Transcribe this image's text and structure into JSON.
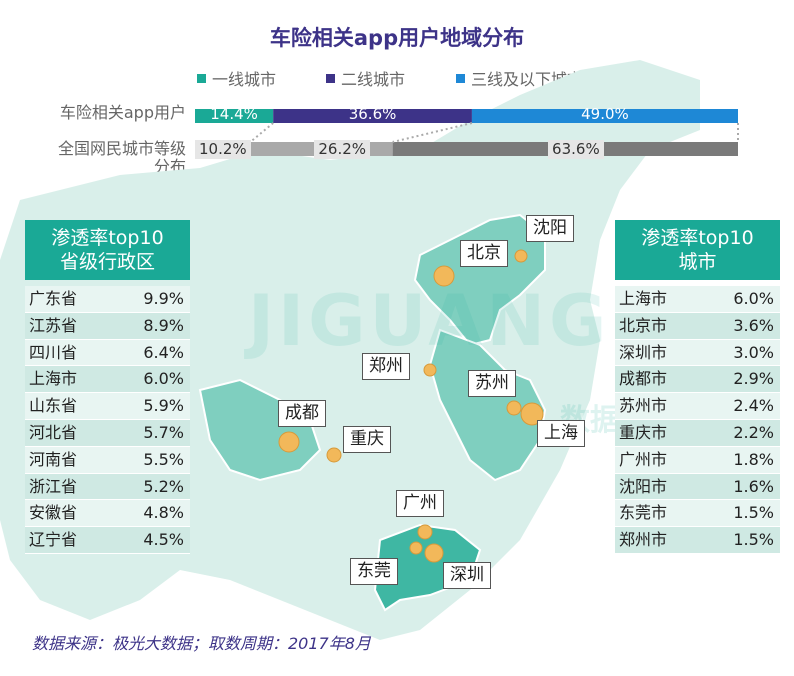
{
  "title": "车险相关app用户地域分布",
  "legend": [
    {
      "label": "一线城市",
      "color": "#1aa996"
    },
    {
      "label": "二线城市",
      "color": "#3d3388"
    },
    {
      "label": "三线及以下城市",
      "color": "#1e88d6"
    }
  ],
  "chart_data": {
    "type": "bar",
    "stacked": true,
    "orientation": "horizontal",
    "categories": [
      "车险相关app用户",
      "全国网民城市等级分布"
    ],
    "series": [
      {
        "name": "一线城市",
        "values": [
          14.4,
          10.2
        ]
      },
      {
        "name": "二线城市",
        "values": [
          36.6,
          26.2
        ]
      },
      {
        "name": "三线及以下城市",
        "values": [
          49.0,
          63.6
        ]
      }
    ],
    "value_labels": [
      [
        "14.4%",
        "36.6%",
        "49.0%"
      ],
      [
        "10.2%",
        "26.2%",
        "63.6%"
      ]
    ],
    "unit": "%"
  },
  "row_labels": {
    "app_users": "车险相关app用户",
    "netizen_1": "全国网民城市等级",
    "netizen_2": "分布"
  },
  "colors": {
    "tier1": "#1aa996",
    "tier2": "#3d3388",
    "tier3": "#1e88d6",
    "gray_light": "#cfcfcf",
    "gray_mid": "#a9a9a9",
    "gray_dark": "#7a7a7a",
    "map_dark": "#7fcfbf",
    "map_light": "#d9efea",
    "marker": "#f2b85a"
  },
  "province_panel": {
    "title_line1": "渗透率top10",
    "title_line2": "省级行政区",
    "rows": [
      {
        "name": "广东省",
        "value": "9.9%"
      },
      {
        "name": "江苏省",
        "value": "8.9%"
      },
      {
        "name": "四川省",
        "value": "6.4%"
      },
      {
        "name": "上海市",
        "value": "6.0%"
      },
      {
        "name": "山东省",
        "value": "5.9%"
      },
      {
        "name": "河北省",
        "value": "5.7%"
      },
      {
        "name": "河南省",
        "value": "5.5%"
      },
      {
        "name": "浙江省",
        "value": "5.2%"
      },
      {
        "name": "安徽省",
        "value": "4.8%"
      },
      {
        "name": "辽宁省",
        "value": "4.5%"
      }
    ]
  },
  "city_panel": {
    "title_line1": "渗透率top10",
    "title_line2": "城市",
    "rows": [
      {
        "name": "上海市",
        "value": "6.0%"
      },
      {
        "name": "北京市",
        "value": "3.6%"
      },
      {
        "name": "深圳市",
        "value": "3.0%"
      },
      {
        "name": "成都市",
        "value": "2.9%"
      },
      {
        "name": "苏州市",
        "value": "2.4%"
      },
      {
        "name": "重庆市",
        "value": "2.2%"
      },
      {
        "name": "广州市",
        "value": "1.8%"
      },
      {
        "name": "沈阳市",
        "value": "1.6%"
      },
      {
        "name": "东莞市",
        "value": "1.5%"
      },
      {
        "name": "郑州市",
        "value": "1.5%"
      }
    ]
  },
  "map_labels": {
    "shenyang": "沈阳",
    "beijing": "北京",
    "zhengzhou": "郑州",
    "suzhou": "苏州",
    "shanghai": "上海",
    "chengdu": "成都",
    "chongqing": "重庆",
    "guangzhou": "广州",
    "dongguan": "东莞",
    "shenzhen": "深圳"
  },
  "watermark": "JIGUANG",
  "watermark_cn": "数据服务",
  "source": "数据来源：极光大数据；取数周期：2017年8月"
}
